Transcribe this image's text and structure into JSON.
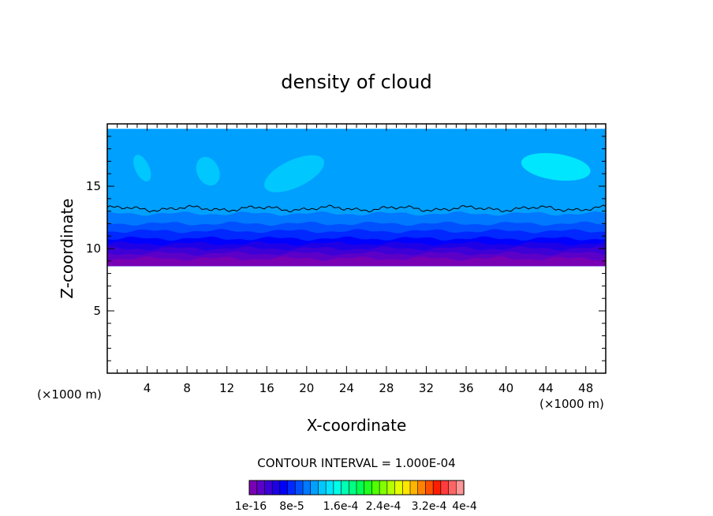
{
  "chart_data": {
    "type": "heatmap",
    "title": "density of cloud",
    "xlabel": "X-coordinate",
    "ylabel": "Z-coordinate",
    "x_unit": "(×1000 m)",
    "z_unit": "(×1000 m)",
    "xlim": [
      0,
      50
    ],
    "ylim": [
      0,
      20
    ],
    "x_ticks": [
      4,
      8,
      12,
      16,
      20,
      24,
      28,
      32,
      36,
      40,
      44,
      48
    ],
    "x_tick_labels": [
      "4",
      "8",
      "12",
      "16",
      "20",
      "24",
      "28",
      "32",
      "36",
      "40",
      "44",
      "48"
    ],
    "y_ticks": [
      5,
      10,
      15
    ],
    "y_tick_labels": [
      "5",
      "10",
      "15"
    ],
    "contour_interval_text": "CONTOUR INTERVAL = 1.000E-04",
    "colorbar": {
      "labels": [
        "1e-16",
        "8e-5",
        "1.6e-4",
        "2.4e-4",
        "3.2e-4",
        "4e-4"
      ],
      "colors": [
        "#7a00b3",
        "#5c00c8",
        "#3d00d6",
        "#1e00e6",
        "#0000ff",
        "#0028ff",
        "#0050ff",
        "#0078ff",
        "#00a0ff",
        "#00c8ff",
        "#00e6ff",
        "#00ffe6",
        "#00ffb4",
        "#00ff82",
        "#00ff50",
        "#1eff1e",
        "#50ff00",
        "#82ff00",
        "#b4ff00",
        "#e6ff00",
        "#ffe600",
        "#ffb400",
        "#ff8200",
        "#ff5000",
        "#ff1e00",
        "#ff3c3c",
        "#ff6464",
        "#ff9696"
      ]
    },
    "field": {
      "cloud_base_z": 8.6,
      "cloud_top_z": 19.6,
      "outer_contour_z": 13.2,
      "layers": [
        {
          "z_bottom": 8.6,
          "z_top": 9.2,
          "color": "#7a00b3"
        },
        {
          "z_bottom": 9.2,
          "z_top": 9.6,
          "color": "#5c00c8"
        },
        {
          "z_bottom": 9.6,
          "z_top": 10.0,
          "color": "#3d00d6"
        },
        {
          "z_bottom": 10.0,
          "z_top": 10.4,
          "color": "#1e00e6"
        },
        {
          "z_bottom": 10.4,
          "z_top": 10.8,
          "color": "#0000ff"
        },
        {
          "z_bottom": 10.8,
          "z_top": 11.4,
          "color": "#0028ff"
        },
        {
          "z_bottom": 11.4,
          "z_top": 12.0,
          "color": "#0050ff"
        },
        {
          "z_bottom": 12.0,
          "z_top": 12.8,
          "color": "#0078ff"
        },
        {
          "z_bottom": 12.8,
          "z_top": 19.6,
          "color": "#00a0ff"
        }
      ],
      "patches": [
        {
          "x": [
            2.8,
            4.2
          ],
          "z": [
            15.3,
            17.6
          ],
          "color": "#00c8ff"
        },
        {
          "x": [
            9.0,
            11.2
          ],
          "z": [
            15.0,
            17.4
          ],
          "color": "#00c8ff"
        },
        {
          "x": [
            15.5,
            22.0
          ],
          "z": [
            14.9,
            17.1
          ],
          "color": "#00c8ff"
        },
        {
          "x": [
            41.5,
            48.5
          ],
          "z": [
            15.5,
            17.6
          ],
          "color": "#00e6ff"
        }
      ]
    }
  }
}
